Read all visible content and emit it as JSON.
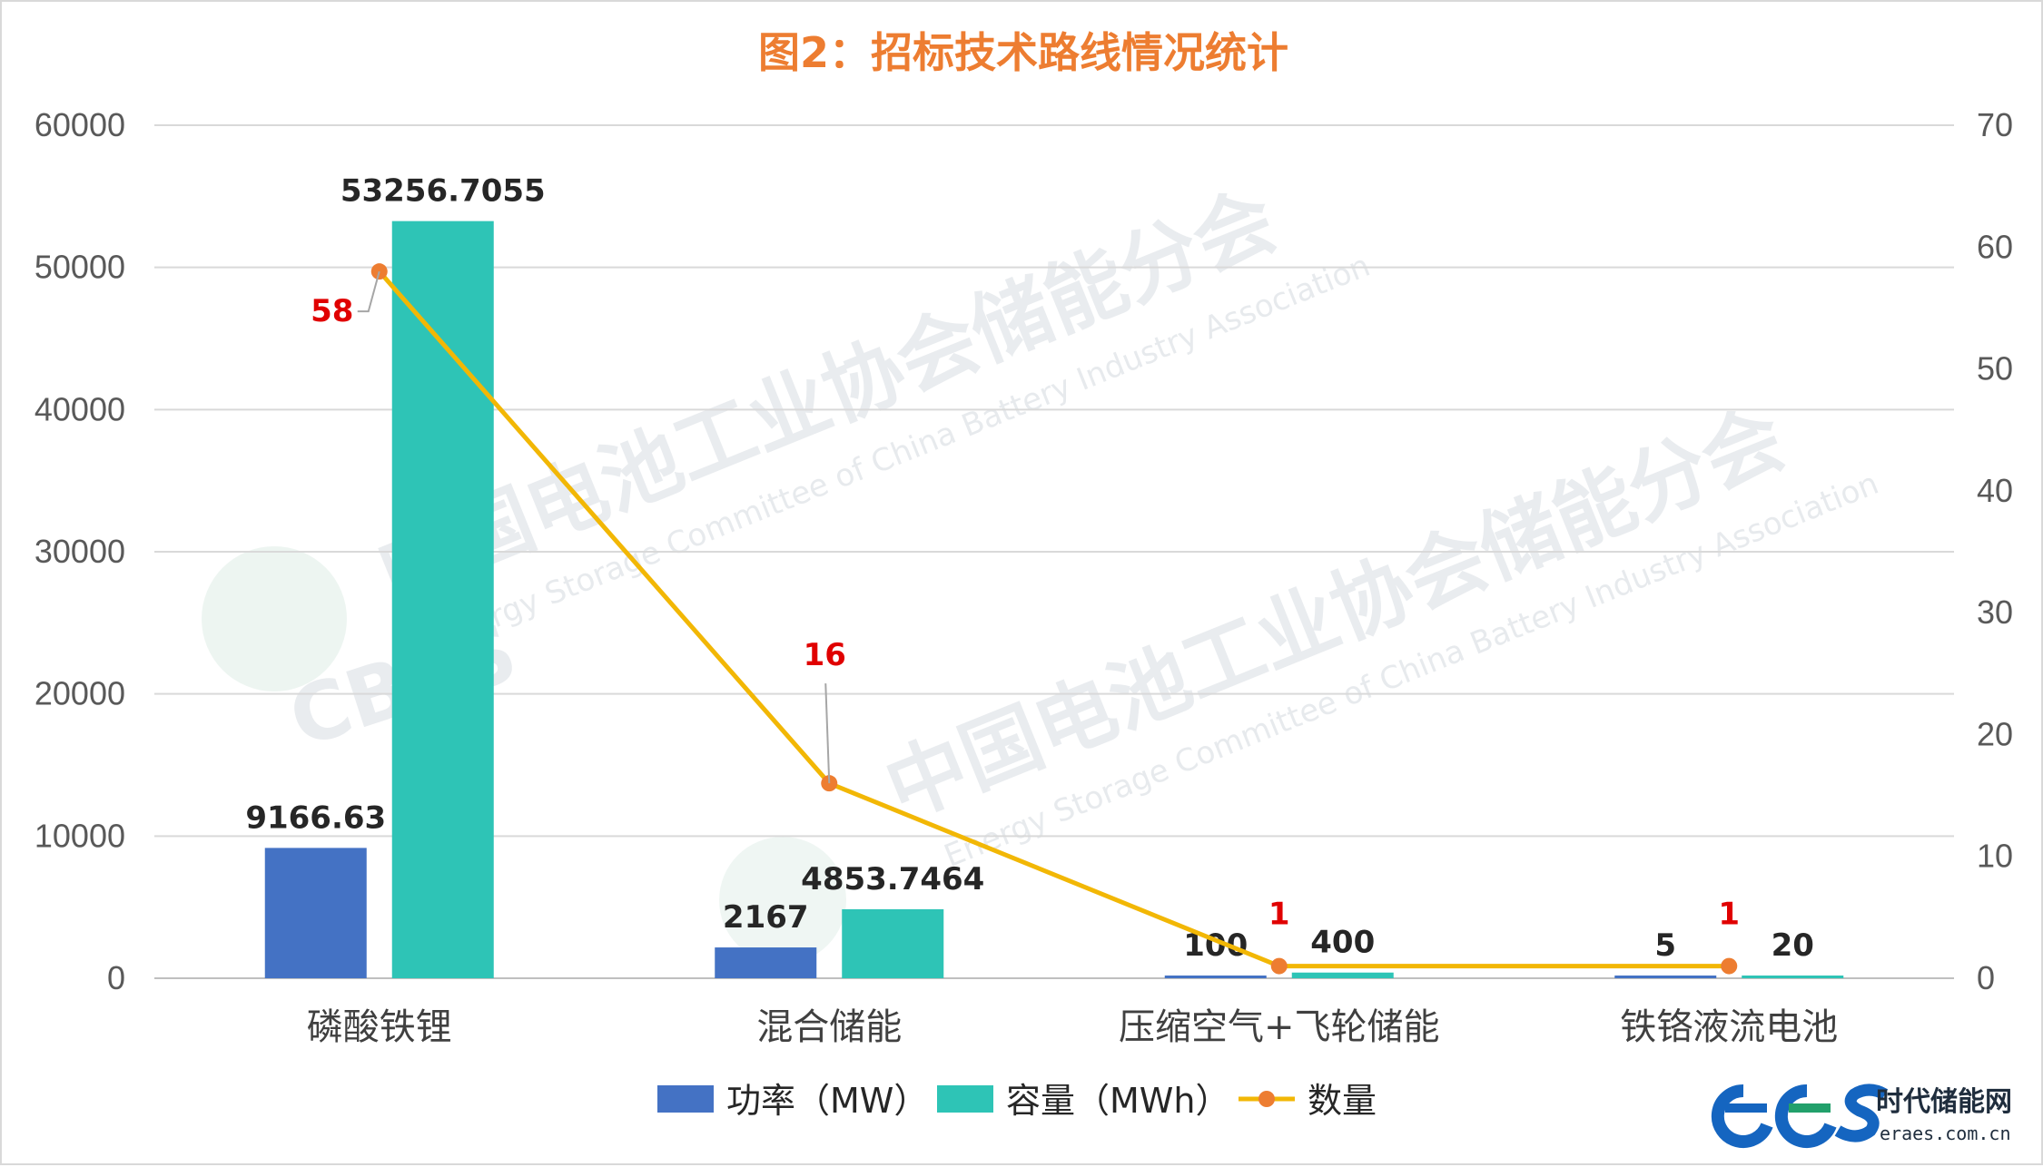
{
  "colors": {
    "title": "#ED7D31",
    "power": "#4472C4",
    "capacity": "#2EC4B6",
    "count_line": "#F2B705",
    "count_marker": "#ED7D31",
    "count_label": "#E00000",
    "grid": "#D9D9D9",
    "logo_blue": "#1565C0",
    "logo_green": "#22A06B"
  },
  "chart_data": {
    "type": "bar",
    "title": "图2：招标技术路线情况统计",
    "categories": [
      "磷酸铁锂",
      "混合储能",
      "压缩空气+飞轮储能",
      "铁铬液流电池"
    ],
    "y_left": {
      "lim": [
        0,
        60000
      ],
      "ticks": [
        "0",
        "10000",
        "20000",
        "30000",
        "40000",
        "50000",
        "60000"
      ]
    },
    "y_right": {
      "lim": [
        0,
        70
      ],
      "ticks": [
        "0",
        "10",
        "20",
        "30",
        "40",
        "50",
        "60",
        "70"
      ]
    },
    "grid": true,
    "legend_position": "bottom",
    "series": [
      {
        "name": "功率（MW）",
        "type": "bar",
        "axis": "left",
        "values": [
          9166.63,
          2167,
          100,
          5
        ],
        "labels": [
          "9166.63",
          "2167",
          "100",
          "5"
        ]
      },
      {
        "name": "容量（MWh）",
        "type": "bar",
        "axis": "left",
        "values": [
          53256.7055,
          4853.7464,
          400,
          20
        ],
        "labels": [
          "53256.7055",
          "4853.7464",
          "400",
          "20"
        ]
      },
      {
        "name": "数量",
        "type": "line",
        "axis": "right",
        "values": [
          58,
          16,
          1,
          1
        ],
        "labels": [
          "58",
          "16",
          "1",
          "1"
        ]
      }
    ]
  },
  "watermark": {
    "cn": "中国电池工业协会储能分会",
    "en": "Energy Storage Committee of China Battery Industry Association",
    "logo_text": "CBES"
  },
  "brand": {
    "logo": "ees",
    "name": "时代储能网",
    "url": "eraes.com.cn"
  }
}
